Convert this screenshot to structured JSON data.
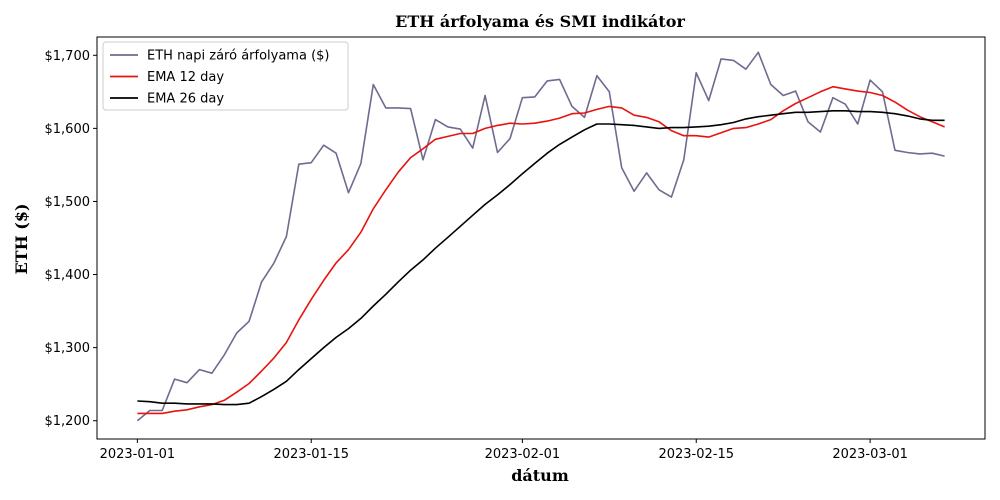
{
  "chart_data": {
    "type": "line",
    "title": "ETH árfolyama és SMI indikátor",
    "xlabel": "dátum",
    "ylabel": "ETH ($)",
    "x_start": "2023-01-01",
    "x_ticks": [
      "2023-01-01",
      "2023-01-15",
      "2023-02-01",
      "2023-02-15",
      "2023-03-01"
    ],
    "ylim": [
      1175,
      1725
    ],
    "y_ticks": [
      1200,
      1300,
      1400,
      1500,
      1600,
      1700
    ],
    "y_tick_labels": [
      "$1,200",
      "$1,300",
      "$1,400",
      "$1,500",
      "$1,600",
      "$1,700"
    ],
    "grid": false,
    "legend_position": "top-left",
    "series": [
      {
        "name": "ETH napi záró árfolyama ($)",
        "color": "#6f6a8f",
        "values": [
          1200,
          1214,
          1214,
          1257,
          1252,
          1270,
          1265,
          1290,
          1320,
          1336,
          1390,
          1416,
          1452,
          1551,
          1553,
          1577,
          1566,
          1512,
          1552,
          1660,
          1628,
          1628,
          1627,
          1557,
          1612,
          1602,
          1599,
          1573,
          1645,
          1567,
          1586,
          1642,
          1643,
          1665,
          1667,
          1630,
          1615,
          1672,
          1650,
          1546,
          1514,
          1539,
          1516,
          1506,
          1557,
          1676,
          1638,
          1695,
          1693,
          1681,
          1704,
          1660,
          1645,
          1651,
          1609,
          1595,
          1642,
          1633,
          1606,
          1666,
          1650,
          1570,
          1567,
          1565,
          1566,
          1562
        ]
      },
      {
        "name": "EMA 12 day",
        "color": "#e8130f",
        "values": [
          1210,
          1210,
          1210,
          1213,
          1215,
          1219,
          1222,
          1228,
          1239,
          1251,
          1268,
          1286,
          1307,
          1338,
          1366,
          1392,
          1416,
          1434,
          1458,
          1490,
          1516,
          1540,
          1560,
          1572,
          1585,
          1589,
          1593,
          1593,
          1600,
          1604,
          1607,
          1606,
          1607,
          1610,
          1614,
          1620,
          1621,
          1626,
          1630,
          1628,
          1618,
          1615,
          1609,
          1597,
          1590,
          1590,
          1588,
          1594,
          1600,
          1601,
          1606,
          1612,
          1624,
          1634,
          1642,
          1650,
          1657,
          1654,
          1651,
          1649,
          1645,
          1636,
          1625,
          1616,
          1609,
          1602
        ]
      },
      {
        "name": "EMA 26 day",
        "color": "#000000",
        "values": [
          1227,
          1226,
          1224,
          1224,
          1223,
          1223,
          1223,
          1222,
          1222,
          1224,
          1233,
          1243,
          1254,
          1270,
          1285,
          1300,
          1314,
          1326,
          1340,
          1357,
          1373,
          1390,
          1406,
          1420,
          1436,
          1451,
          1466,
          1481,
          1496,
          1509,
          1523,
          1538,
          1552,
          1566,
          1578,
          1588,
          1598,
          1606,
          1606,
          1605,
          1604,
          1602,
          1600,
          1601,
          1601,
          1602,
          1603,
          1605,
          1608,
          1613,
          1616,
          1618,
          1620,
          1622,
          1622,
          1623,
          1624,
          1624,
          1623,
          1623,
          1622,
          1620,
          1617,
          1613,
          1611,
          1611
        ]
      }
    ]
  }
}
